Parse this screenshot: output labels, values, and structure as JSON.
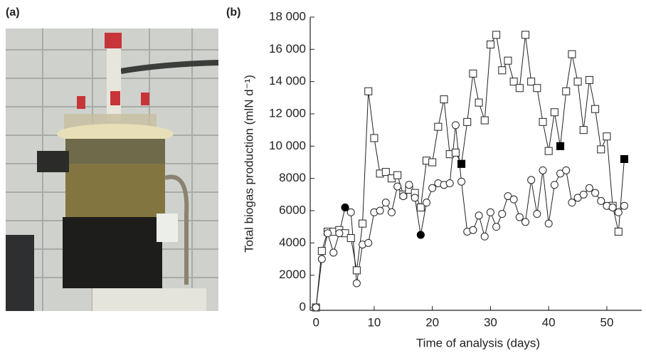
{
  "panel_a": {
    "label": "(a)"
  },
  "chart_data": {
    "type": "line",
    "panel_label": "(b)",
    "xlabel": "Time of analysis (days)",
    "ylabel": "Total biogas production (mlN d⁻¹)",
    "xlim": [
      -1,
      56
    ],
    "ylim": [
      0,
      18000
    ],
    "xticks": [
      0,
      10,
      20,
      30,
      40,
      50
    ],
    "yticks": [
      0,
      2000,
      4000,
      6000,
      8000,
      {
        "value": 10000,
        "label": "10 000"
      },
      {
        "value": 12000,
        "label": "12 000"
      },
      {
        "value": 14000,
        "label": "14 000"
      },
      {
        "value": 16000,
        "label": "16 000"
      },
      {
        "value": 18000,
        "label": "18 000"
      }
    ],
    "grid": false,
    "series": [
      {
        "marker": "square",
        "color": "#222",
        "line": true,
        "x": [
          0,
          1,
          2,
          3,
          4,
          5,
          6,
          7,
          8,
          9,
          10,
          11,
          12,
          13,
          14,
          15,
          16,
          17,
          18,
          19,
          20,
          21,
          22,
          23,
          24,
          25,
          26,
          27,
          28,
          29,
          30,
          31,
          32,
          33,
          34,
          35,
          36,
          37,
          38,
          39,
          40,
          41,
          42,
          43,
          44,
          45,
          46,
          47,
          48,
          49,
          50,
          51,
          52,
          53
        ],
        "values": [
          0,
          3500,
          4700,
          4700,
          4800,
          4600,
          4300,
          2300,
          5200,
          13400,
          10500,
          8300,
          8400,
          8000,
          8200,
          7000,
          7300,
          7100,
          6200,
          9100,
          9000,
          11200,
          12900,
          9500,
          9600,
          8900,
          11500,
          14500,
          12700,
          11600,
          16300,
          16900,
          14700,
          15300,
          14000,
          13600,
          16900,
          14000,
          13600,
          11500,
          9700,
          12100,
          10000,
          13400,
          15700,
          14000,
          11000,
          14100,
          12300,
          9800,
          10600,
          6300,
          4700,
          9200
        ]
      },
      {
        "marker": "circle",
        "color": "#222",
        "line": true,
        "x": [
          0,
          1,
          2,
          3,
          4,
          5,
          6,
          7,
          8,
          9,
          10,
          11,
          12,
          13,
          14,
          15,
          16,
          17,
          18,
          19,
          20,
          21,
          22,
          23,
          24,
          25,
          26,
          27,
          28,
          29,
          30,
          31,
          32,
          33,
          34,
          35,
          36,
          37,
          38,
          39,
          40,
          41,
          42,
          43,
          44,
          45,
          46,
          47,
          48,
          49,
          50,
          51,
          52,
          53
        ],
        "values": [
          0,
          3000,
          4600,
          3400,
          4600,
          6200,
          5900,
          1500,
          3900,
          4000,
          5900,
          6000,
          6500,
          5900,
          7500,
          6900,
          7600,
          6800,
          4500,
          6500,
          7400,
          7700,
          7600,
          7700,
          11300,
          7800,
          4700,
          4800,
          5700,
          4400,
          5900,
          5000,
          5800,
          6900,
          6700,
          5600,
          5300,
          7900,
          5800,
          8500,
          5200,
          7600,
          8300,
          8500,
          6500,
          6800,
          7000,
          7400,
          7100,
          6600,
          6300,
          6200,
          5900,
          6300
        ]
      },
      {
        "marker": "square-filled",
        "color": "#000",
        "line": false,
        "x": [
          25,
          42,
          53
        ],
        "values": [
          8900,
          10000,
          9200
        ]
      },
      {
        "marker": "circle-filled",
        "color": "#000",
        "line": false,
        "x": [
          5,
          18
        ],
        "values": [
          6200,
          4500
        ]
      }
    ]
  }
}
